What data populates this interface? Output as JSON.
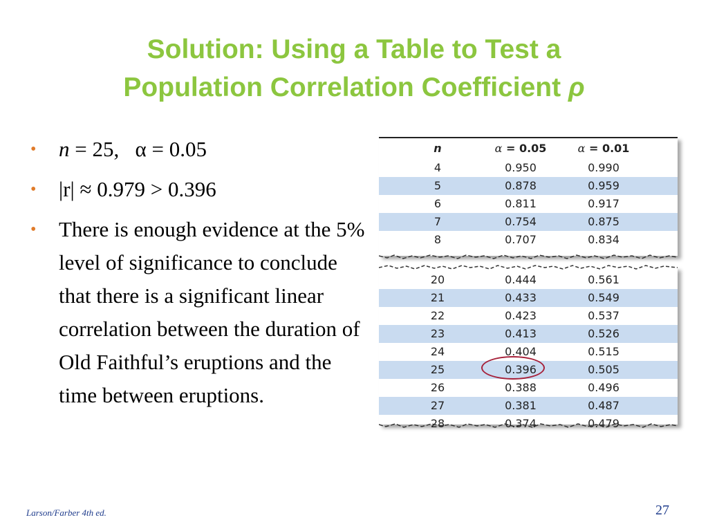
{
  "slide": {
    "title_line1": "Solution: Using a Table to Test a",
    "title_line2": "Population Correlation Coefficient",
    "title_symbol": "ρ"
  },
  "bullets": {
    "b1_var": "n",
    "b1_rest": " = 25,   α = 0.05",
    "b2": "|r| ≈ 0.979 > 0.396",
    "b3": "There is enough evidence at the 5% level of significance to conclude that there is a significant linear correlation between the duration of Old Faithful’s eruptions and the time between eruptions."
  },
  "table": {
    "header": {
      "n": "n",
      "alpha_symbol": "α",
      "col_a": " = 0.05",
      "col_b": " = 0.01"
    },
    "top_rows": [
      {
        "n": "4",
        "a": "0.950",
        "b": "0.990"
      },
      {
        "n": "5",
        "a": "0.878",
        "b": "0.959"
      },
      {
        "n": "6",
        "a": "0.811",
        "b": "0.917"
      },
      {
        "n": "7",
        "a": "0.754",
        "b": "0.875"
      },
      {
        "n": "8",
        "a": "0.707",
        "b": "0.834"
      }
    ],
    "bottom_rows": [
      {
        "n": "20",
        "a": "0.444",
        "b": "0.561"
      },
      {
        "n": "21",
        "a": "0.433",
        "b": "0.549"
      },
      {
        "n": "22",
        "a": "0.423",
        "b": "0.537"
      },
      {
        "n": "23",
        "a": "0.413",
        "b": "0.526"
      },
      {
        "n": "24",
        "a": "0.404",
        "b": "0.515"
      },
      {
        "n": "25",
        "a": "0.396",
        "b": "0.505"
      },
      {
        "n": "26",
        "a": "0.388",
        "b": "0.496"
      },
      {
        "n": "27",
        "a": "0.381",
        "b": "0.487"
      },
      {
        "n": "28",
        "a": "0.374",
        "b": "0.479"
      }
    ],
    "highlighted_value": "0.396"
  },
  "footer": {
    "source": "Larson/Farber 4th ed.",
    "page_number": "27"
  },
  "colors": {
    "title": "#8cc63f",
    "bullet": "#e07b2a",
    "row_stripe": "#c9dbf0",
    "circle": "#a6213a",
    "footer": "#1f3c8c"
  }
}
